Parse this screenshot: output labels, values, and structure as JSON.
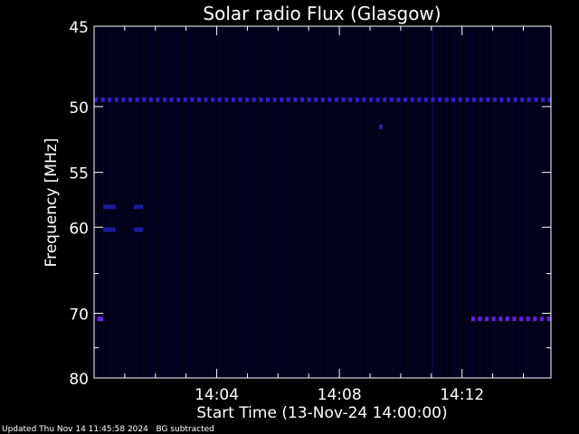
{
  "chart_data": {
    "type": "heatmap",
    "title": "Solar radio Flux (Glasgow)",
    "xlabel": "Start Time (13-Nov-24 14:00:00)",
    "ylabel": "Frequency [MHz]",
    "xlim_minutes": [
      0,
      14.9
    ],
    "ylim_mhz": [
      45,
      80
    ],
    "y_axis_inverted_log_like": true,
    "x_ticks": [
      {
        "minutes": 4,
        "label": "14:04"
      },
      {
        "minutes": 8,
        "label": "14:08"
      },
      {
        "minutes": 12,
        "label": "14:12"
      }
    ],
    "y_ticks": [
      {
        "mhz": 45,
        "label": "45"
      },
      {
        "mhz": 50,
        "label": "50"
      },
      {
        "mhz": 55,
        "label": "55"
      },
      {
        "mhz": 60,
        "label": "60"
      },
      {
        "mhz": 70,
        "label": "70"
      },
      {
        "mhz": 80,
        "label": "80"
      }
    ],
    "colormap": "dark blue to bright violet",
    "features": [
      {
        "name": "interference-band",
        "freq_mhz": 49.5,
        "t_start_min": 0,
        "t_end_min": 14.9,
        "intensity": "medium"
      },
      {
        "name": "interference-band",
        "freq_mhz": 70.7,
        "t_start_min": 12.3,
        "t_end_min": 14.9,
        "intensity": "high"
      },
      {
        "name": "short-burst",
        "freq_mhz": 70.7,
        "t_start_min": 0.1,
        "t_end_min": 0.3,
        "intensity": "high"
      },
      {
        "name": "short-burst",
        "freq_mhz": 58.0,
        "t_start_min": 0.3,
        "t_end_min": 0.7,
        "intensity": "low"
      },
      {
        "name": "short-burst",
        "freq_mhz": 60.2,
        "t_start_min": 0.3,
        "t_end_min": 0.7,
        "intensity": "low"
      },
      {
        "name": "short-burst",
        "freq_mhz": 58.0,
        "t_start_min": 1.3,
        "t_end_min": 1.6,
        "intensity": "low"
      },
      {
        "name": "short-burst",
        "freq_mhz": 60.2,
        "t_start_min": 1.3,
        "t_end_min": 1.6,
        "intensity": "low"
      },
      {
        "name": "short-burst",
        "freq_mhz": 51.4,
        "t_start_min": 9.3,
        "t_end_min": 9.4,
        "intensity": "medium"
      }
    ],
    "background_color": "#000018",
    "low_color": "#0a0a40",
    "medium_color": "#3a1ad0",
    "high_color": "#6a1fe0"
  },
  "footer": {
    "updated": "Updated Thu Nov 14 11:45:58 2024",
    "bg_note": "BG subtracted"
  }
}
